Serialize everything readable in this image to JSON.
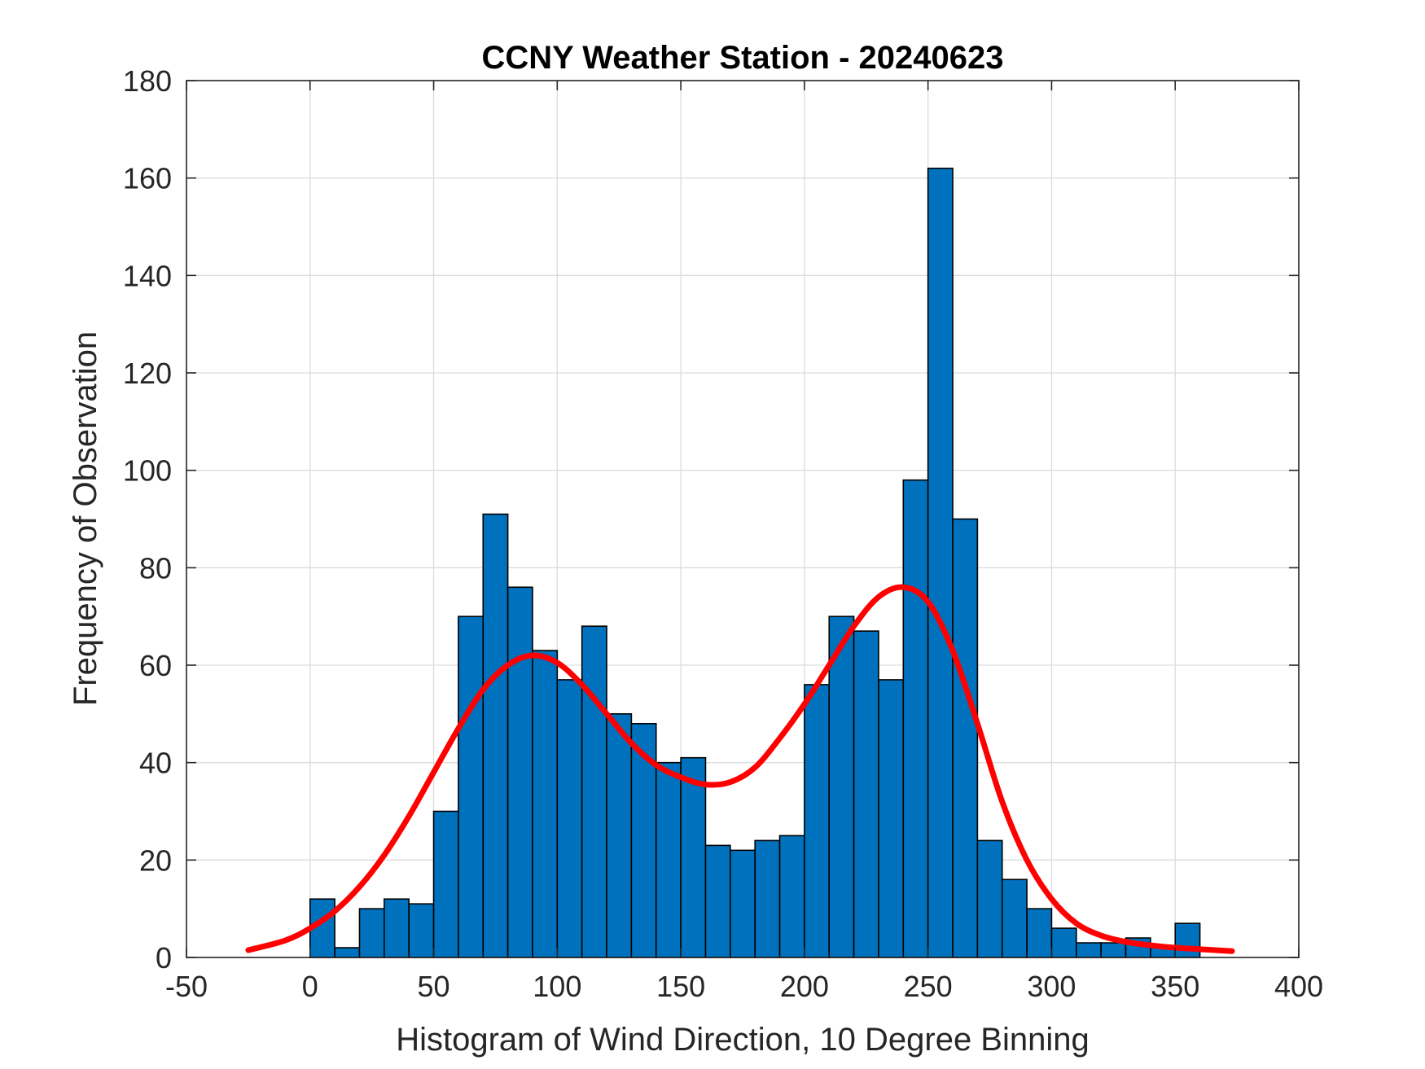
{
  "chart_data": {
    "type": "bar",
    "subtype": "histogram-with-fit",
    "title": "CCNY Weather Station - 20240623",
    "xlabel": "Histogram of Wind Direction, 10 Degree Binning",
    "ylabel": "Frequency of Observation",
    "xlim": [
      -50,
      400
    ],
    "ylim": [
      0,
      180
    ],
    "xticks": [
      -50,
      0,
      50,
      100,
      150,
      200,
      250,
      300,
      350,
      400
    ],
    "yticks": [
      0,
      20,
      40,
      60,
      80,
      100,
      120,
      140,
      160,
      180
    ],
    "grid": true,
    "bin_width": 10,
    "bin_edges": [
      0,
      10,
      20,
      30,
      40,
      50,
      60,
      70,
      80,
      90,
      100,
      110,
      120,
      130,
      140,
      150,
      160,
      170,
      180,
      190,
      200,
      210,
      220,
      230,
      240,
      250,
      260,
      270,
      280,
      290,
      300,
      310,
      320,
      330,
      340,
      350,
      360
    ],
    "values": [
      12,
      2,
      10,
      12,
      11,
      30,
      70,
      91,
      76,
      63,
      57,
      68,
      50,
      48,
      40,
      41,
      23,
      22,
      24,
      25,
      56,
      70,
      67,
      57,
      98,
      162,
      90,
      24,
      16,
      10,
      6,
      3,
      3,
      4,
      2,
      7
    ],
    "fit": {
      "name": "fitted distribution",
      "x": [
        -25,
        -10,
        0,
        10,
        20,
        30,
        40,
        50,
        60,
        70,
        80,
        90,
        100,
        110,
        120,
        130,
        140,
        150,
        160,
        170,
        180,
        190,
        200,
        210,
        220,
        230,
        240,
        250,
        260,
        270,
        280,
        290,
        300,
        310,
        320,
        330,
        340,
        350,
        360,
        373
      ],
      "y": [
        1.5,
        3.5,
        6,
        9.5,
        14.5,
        21,
        29,
        38,
        47,
        55,
        60,
        62,
        60.5,
        56,
        50,
        44,
        39.5,
        37,
        35.5,
        36,
        39,
        45,
        52,
        60,
        68,
        74,
        76,
        73,
        63,
        48,
        32,
        20,
        12,
        7,
        4.5,
        3.2,
        2.5,
        2,
        1.7,
        1.3
      ]
    },
    "colors": {
      "bar": "#0072BD",
      "fit": "#FF0000"
    }
  }
}
